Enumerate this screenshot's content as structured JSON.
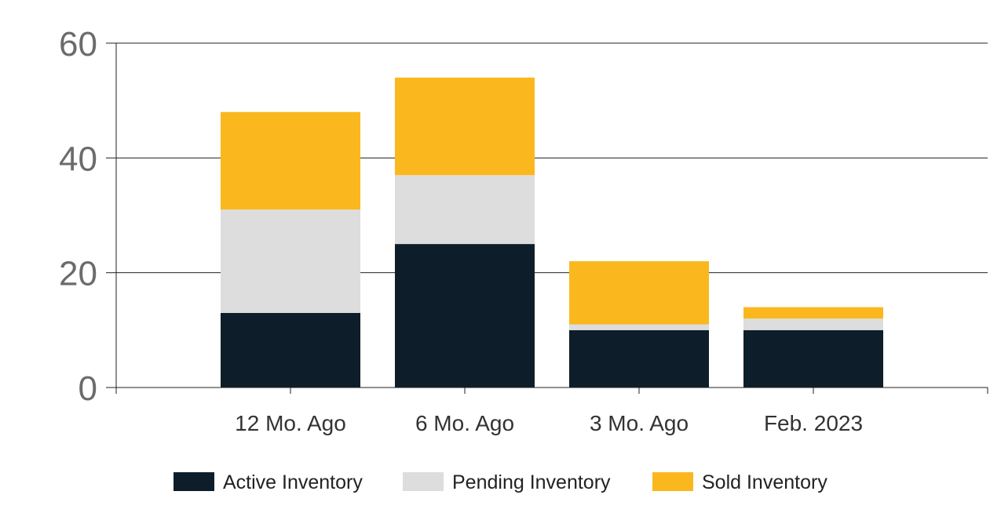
{
  "chart_data": {
    "type": "bar",
    "stacked": true,
    "categories": [
      "12 Mo. Ago",
      "6 Mo. Ago",
      "3 Mo. Ago",
      "Feb. 2023"
    ],
    "series": [
      {
        "name": "Active Inventory",
        "values": [
          13,
          25,
          10,
          10
        ],
        "color": "#0d1e2a"
      },
      {
        "name": "Pending Inventory",
        "values": [
          18,
          12,
          1,
          2
        ],
        "color": "#dddddd"
      },
      {
        "name": "Sold Inventory",
        "values": [
          17,
          17,
          11,
          2
        ],
        "color": "#fab81e"
      }
    ],
    "ylim": [
      0,
      60
    ],
    "yticks": [
      0,
      20,
      40,
      60
    ],
    "grid": true,
    "legend_position": "bottom",
    "title": "",
    "xlabel": "",
    "ylabel": ""
  }
}
